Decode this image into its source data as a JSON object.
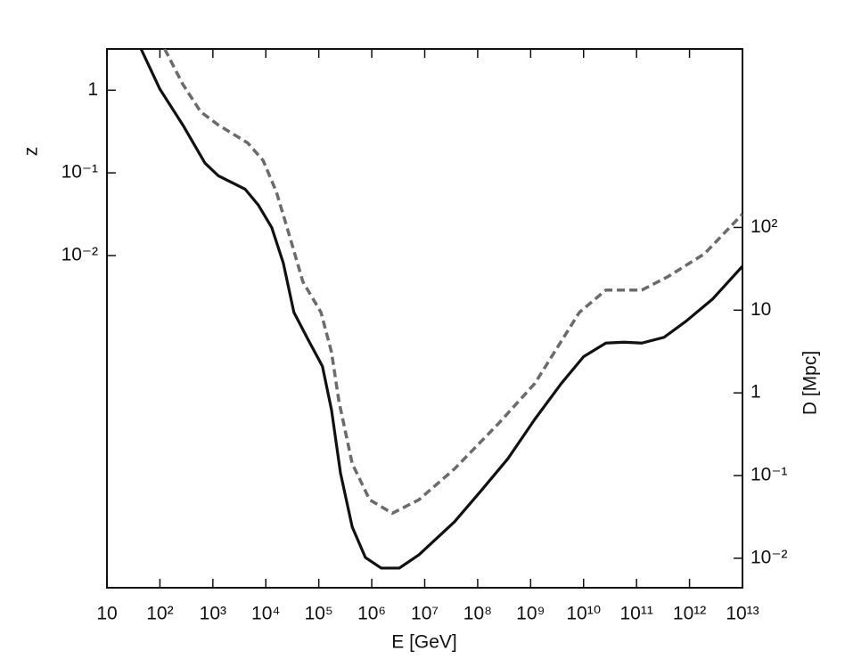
{
  "chart_data": {
    "type": "line",
    "xlabel": "E  [GeV]",
    "ylabel": "z",
    "y2label": "D [Mpc]",
    "xscale": "log",
    "yscale": "log",
    "y2scale": "log",
    "xlim": [
      10,
      10000000000000.0
    ],
    "xticks": [
      10,
      {
        "value": 100,
        "label": "10²"
      },
      {
        "value": 1000,
        "label": "10³"
      },
      {
        "value": 10000,
        "label": "10⁴"
      },
      {
        "value": 100000,
        "label": "10⁵"
      },
      {
        "value": 1000000,
        "label": "10⁶"
      },
      {
        "value": 10000000,
        "label": "10⁷"
      },
      {
        "value": 100000000,
        "label": "10⁸"
      },
      {
        "value": 1000000000,
        "label": "10⁹"
      },
      {
        "value": 10000000000,
        "label": "10¹⁰"
      },
      {
        "value": 100000000000,
        "label": "10¹¹"
      },
      {
        "value": 1000000000000,
        "label": "10¹²"
      },
      {
        "value": 10000000000000,
        "label": "10¹³"
      }
    ],
    "ylim": [
      9.6e-07,
      3.15
    ],
    "yticks": [
      1,
      {
        "value": 0.1,
        "label": "10⁻¹"
      },
      {
        "value": 0.01,
        "label": "10⁻²"
      }
    ],
    "y2lim": [
      0.0044,
      14400
    ],
    "y2ticks": [
      {
        "value": 100,
        "label": "10²"
      },
      10,
      1,
      {
        "value": 0.1,
        "label": "10⁻¹"
      },
      {
        "value": 0.01,
        "label": "10⁻²"
      }
    ],
    "series": [
      {
        "color": "#111111",
        "dash": "solid",
        "axis": "y2",
        "x": [
          44,
          100,
          270,
          710,
          1260,
          4070,
          7240,
          12900,
          21400,
          33900,
          61700,
          117000,
          174000,
          257000,
          427000,
          759000,
          1510000,
          3310000,
          7760000,
          36300000,
          117000000,
          372000000,
          1200000000,
          3800000000,
          10000000000,
          26300000000,
          57500000000,
          126000000000,
          331000000000,
          871000000000,
          2750000000000,
          10000000000000
        ],
        "values": [
          14400,
          4700,
          1740,
          600,
          423,
          290,
          186,
          100,
          37,
          9.4,
          4.5,
          2.1,
          0.62,
          0.107,
          0.024,
          0.0102,
          0.0076,
          0.0076,
          0.011,
          0.0275,
          0.066,
          0.16,
          0.48,
          1.3,
          2.74,
          4.0,
          4.1,
          4.0,
          4.7,
          7.4,
          13.7,
          34
        ]
      },
      {
        "color": "#6b6b6b",
        "dash": "dashed",
        "axis": "y2",
        "x": [
          123,
          270,
          590,
          1260,
          4570,
          8900,
          15800,
          28200,
          50100,
          110000,
          174000,
          240000,
          427000,
          912000,
          2450000,
          7760000,
          36300000,
          251000000,
          1200000000,
          8320000000,
          26300000000,
          126000000000,
          398000000000,
          1910000000000,
          10000000000000
        ],
        "values": [
          14400,
          5400,
          2500,
          1740,
          1050,
          645,
          270,
          78,
          22,
          9.4,
          3.1,
          0.79,
          0.14,
          0.051,
          0.035,
          0.051,
          0.12,
          0.43,
          1.3,
          9.4,
          17.5,
          17.5,
          25.6,
          48,
          145
        ]
      }
    ]
  }
}
